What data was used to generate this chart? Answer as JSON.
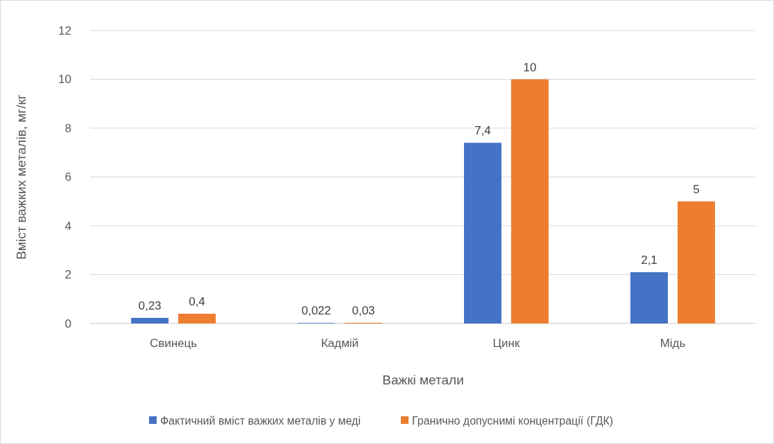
{
  "chart_data": {
    "type": "bar",
    "xlabel": "Важкі метали",
    "ylabel": "Вміст важких металів, мг/кг",
    "categories": [
      "Свинець",
      "Кадмій",
      "Цинк",
      "Мідь"
    ],
    "series": [
      {
        "name": "Фактичний вміст важких металів у меді",
        "color": "#4472c4",
        "values": [
          0.23,
          0.022,
          7.4,
          2.1
        ],
        "value_labels": [
          "0,23",
          "0,022",
          "7,4",
          "2,1"
        ]
      },
      {
        "name": "Гранично допуснимі концентрації (ГДК)",
        "color": "#ed7d31",
        "values": [
          0.4,
          0.03,
          10,
          5
        ],
        "value_labels": [
          "0,4",
          "0,03",
          "10",
          "5"
        ]
      }
    ],
    "ylim": [
      0,
      12
    ],
    "yticks": [
      0,
      2,
      4,
      6,
      8,
      10,
      12
    ],
    "grid": "y",
    "legend": "bottom"
  }
}
